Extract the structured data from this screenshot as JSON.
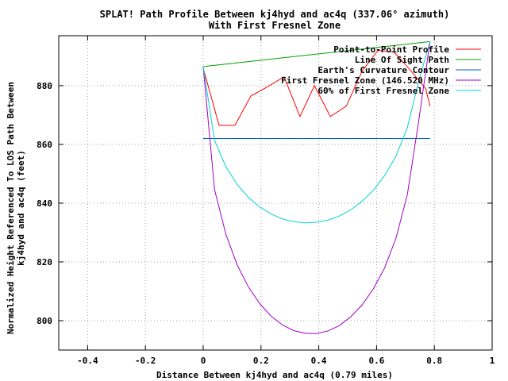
{
  "chart_data": {
    "type": "line",
    "title": "SPLAT! Path Profile Between kj4hyd and ac4q (337.06° azimuth)",
    "subtitle": "With First Fresnel Zone",
    "xlabel": "Distance Between kj4hyd and ac4q (0.79 miles)",
    "ylabel_line1": "Normalized Height Referenced To LOS Path Between",
    "ylabel_line2": "kj4hyd and ac4q (feet)",
    "xlim": [
      -0.5,
      1.0
    ],
    "ylim": [
      790,
      897
    ],
    "xticks": [
      -0.4,
      -0.2,
      0,
      0.2,
      0.4,
      0.6,
      0.8,
      1
    ],
    "xtick_labels": [
      "-0.4",
      "-0.2",
      "0",
      "0.2",
      "0.4",
      "0.6",
      "0.8",
      "1"
    ],
    "yticks": [
      800,
      820,
      840,
      860,
      880
    ],
    "ytick_labels": [
      "800",
      "820",
      "840",
      "860",
      "880"
    ],
    "grid": true,
    "legend_position": "top-right",
    "series": [
      {
        "name": "Point-to-Point Profile",
        "color": "#ff0000",
        "x": [
          0,
          0.055,
          0.11,
          0.165,
          0.22,
          0.28,
          0.335,
          0.385,
          0.44,
          0.495,
          0.55,
          0.605,
          0.66,
          0.715,
          0.77,
          0.785
        ],
        "y": [
          886,
          866.5,
          866.5,
          876.5,
          879.5,
          883,
          869.5,
          880,
          869.5,
          873,
          885,
          892,
          891.5,
          885.5,
          879,
          873
        ]
      },
      {
        "name": "Line Of Sight Path",
        "color": "#00a000",
        "x": [
          0,
          0.785
        ],
        "y": [
          886.5,
          895
        ]
      },
      {
        "name": "Earth's Curvature Contour",
        "color": "#0060d0",
        "x": [
          0,
          0.785
        ],
        "y": [
          862,
          862
        ]
      },
      {
        "name": "First Fresnel Zone (146.520 MHz)",
        "color": "#a000c8",
        "x": [
          0,
          0.0393,
          0.0785,
          0.1178,
          0.157,
          0.1963,
          0.2355,
          0.2748,
          0.314,
          0.3533,
          0.3925,
          0.4318,
          0.471,
          0.5103,
          0.5495,
          0.5888,
          0.628,
          0.6673,
          0.7065,
          0.7458,
          0.785
        ],
        "y": [
          886.5,
          844.6,
          829.4,
          818.9,
          811.4,
          805.7,
          801.5,
          798.5,
          796.6,
          795.7,
          795.6,
          796.5,
          798.3,
          801.3,
          805.3,
          810.8,
          818,
          828.1,
          842.9,
          868,
          895
        ]
      },
      {
        "name": "60% of First Fresnel Zone",
        "color": "#00d2d2",
        "x": [
          0,
          0.0393,
          0.0785,
          0.1178,
          0.157,
          0.1963,
          0.2355,
          0.2748,
          0.314,
          0.3533,
          0.3925,
          0.4318,
          0.471,
          0.5103,
          0.5495,
          0.5888,
          0.628,
          0.6673,
          0.7065,
          0.7458,
          0.785
        ],
        "y": [
          886.5,
          861.4,
          852.4,
          846.3,
          841.9,
          838.6,
          836.3,
          834.6,
          833.7,
          833.3,
          833.5,
          834.2,
          835.6,
          837.7,
          840.6,
          844.4,
          849.4,
          856.1,
          865.7,
          881.6,
          895
        ]
      }
    ]
  }
}
